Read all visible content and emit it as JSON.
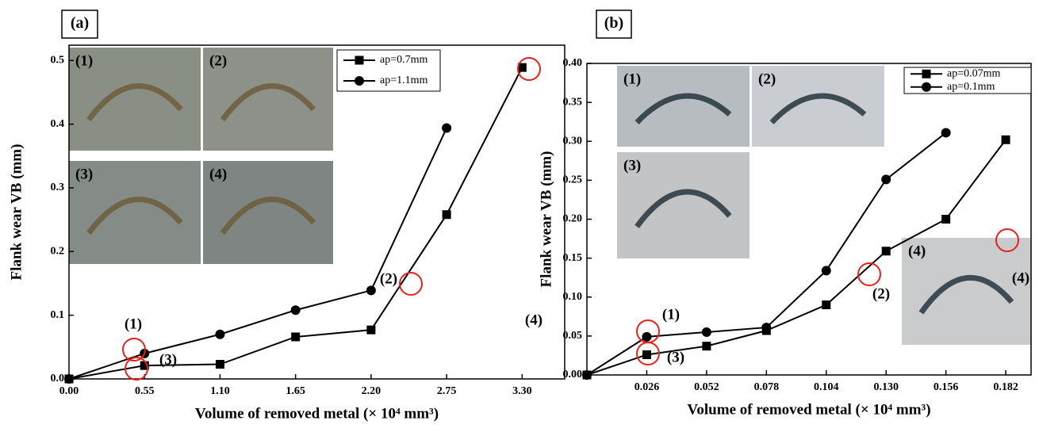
{
  "chart_data": [
    {
      "type": "line",
      "panel_label": "(a)",
      "xlabel": "Volume of removed metal  (× 10⁴ mm³)",
      "ylabel": "Flank wear VB (mm)",
      "x": [
        0,
        0.55,
        1.1,
        1.65,
        2.2,
        2.75,
        3.3
      ],
      "xlim": [
        0,
        3.61
      ],
      "xticks": [
        {
          "value": 0,
          "label": "0.00"
        },
        0.55,
        {
          "value": 1.1,
          "label": "1.10"
        },
        1.65,
        {
          "value": 2.2,
          "label": "2.20"
        },
        2.75,
        {
          "value": 3.3,
          "label": "3.30"
        }
      ],
      "ylim": [
        0,
        0.524
      ],
      "yticks": [
        {
          "value": 0,
          "label": "0.0"
        },
        0.1,
        0.2,
        0.3,
        0.4,
        0.5
      ],
      "series": [
        {
          "name": "ap=0.7mm",
          "color": "#000000",
          "marker": "square",
          "values": [
            0,
            0.021,
            0.023,
            0.066,
            0.077,
            0.258,
            0.489
          ]
        },
        {
          "name": "ap=1.1mm",
          "color": "#000000",
          "marker": "circle",
          "values": [
            0,
            0.04,
            0.07,
            0.108,
            0.139,
            0.394,
            null
          ]
        }
      ],
      "legend": "upper right",
      "annotations": [
        "(1)",
        "(2)",
        "(3)",
        "(4)"
      ],
      "insets": [
        "(1)",
        "(2)",
        "(3)",
        "(4)"
      ]
    },
    {
      "type": "line",
      "panel_label": "(b)",
      "xlabel": "Volume of removed metal (× 10⁴ mm³)",
      "ylabel": "Flank  wear VB (mm)",
      "x": [
        0,
        0.026,
        0.052,
        0.078,
        0.104,
        0.13,
        0.156,
        0.182
      ],
      "xlim": [
        0,
        0.193
      ],
      "xticks": [
        0.026,
        0.052,
        0.078,
        0.104,
        {
          "value": 0.13,
          "label": "0.130"
        },
        0.156,
        0.182
      ],
      "ylim": [
        0,
        0.4
      ],
      "yticks": [
        {
          "value": 0,
          "label": "0.00"
        },
        0.05,
        {
          "value": 0.1,
          "label": "0.10"
        },
        0.15,
        {
          "value": 0.2,
          "label": "0.20"
        },
        0.25,
        {
          "value": 0.3,
          "label": "0.30"
        },
        0.35,
        {
          "value": 0.4,
          "label": "0.40"
        }
      ],
      "series": [
        {
          "name": "ap=0.07mm",
          "color": "#000000",
          "marker": "square",
          "values": [
            0,
            0.026,
            0.037,
            0.057,
            0.09,
            0.159,
            0.2,
            0.302
          ]
        },
        {
          "name": "ap=0.1mm",
          "color": "#000000",
          "marker": "circle",
          "values": [
            0,
            0.049,
            0.055,
            0.061,
            0.134,
            0.251,
            0.311,
            null
          ]
        }
      ],
      "legend": "upper right",
      "annotations": [
        "(1)",
        "(2)",
        "(3)",
        "(4)"
      ],
      "insets": [
        "(1)",
        "(2)",
        "(3)",
        "(4)"
      ]
    }
  ]
}
